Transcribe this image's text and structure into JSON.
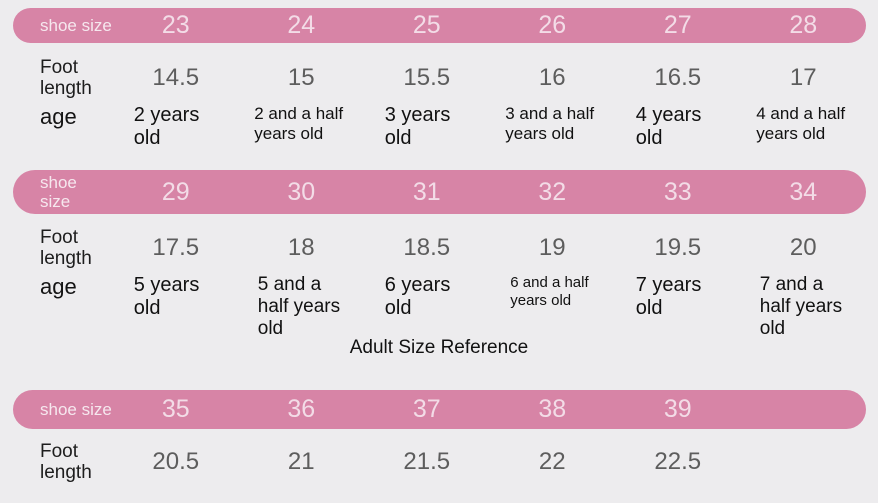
{
  "theme": {
    "background_color": "#edecee",
    "bar_color": "#d784a6",
    "bar_text_color": "#f3dce7",
    "foot_value_color": "#5d5d5d",
    "label_color": "#1d1d1d"
  },
  "labels": {
    "shoe_size": "shoe size",
    "foot_length": "Foot length",
    "age": "age"
  },
  "adult_section_title": "Adult Size Reference",
  "sections": [
    {
      "shoe_sizes": [
        "23",
        "24",
        "25",
        "26",
        "27",
        "28"
      ],
      "foot_lengths": [
        "14.5",
        "15",
        "15.5",
        "16",
        "16.5",
        "17"
      ],
      "ages": [
        "2 years old",
        "2 and a half years old",
        "3 years old",
        "3 and a half years old",
        "4 years old",
        "4 and a half years old"
      ]
    },
    {
      "shoe_sizes": [
        "29",
        "30",
        "31",
        "32",
        "33",
        "34"
      ],
      "foot_lengths": [
        "17.5",
        "18",
        "18.5",
        "19",
        "19.5",
        "20"
      ],
      "ages": [
        "5 years old",
        "5 and a half years old",
        "6 years old",
        "6 and a half years old",
        "7 years old",
        "7 and a half years old"
      ]
    },
    {
      "shoe_sizes": [
        "35",
        "36",
        "37",
        "38",
        "39"
      ],
      "foot_lengths": [
        "20.5",
        "21",
        "21.5",
        "22",
        "22.5"
      ]
    }
  ]
}
